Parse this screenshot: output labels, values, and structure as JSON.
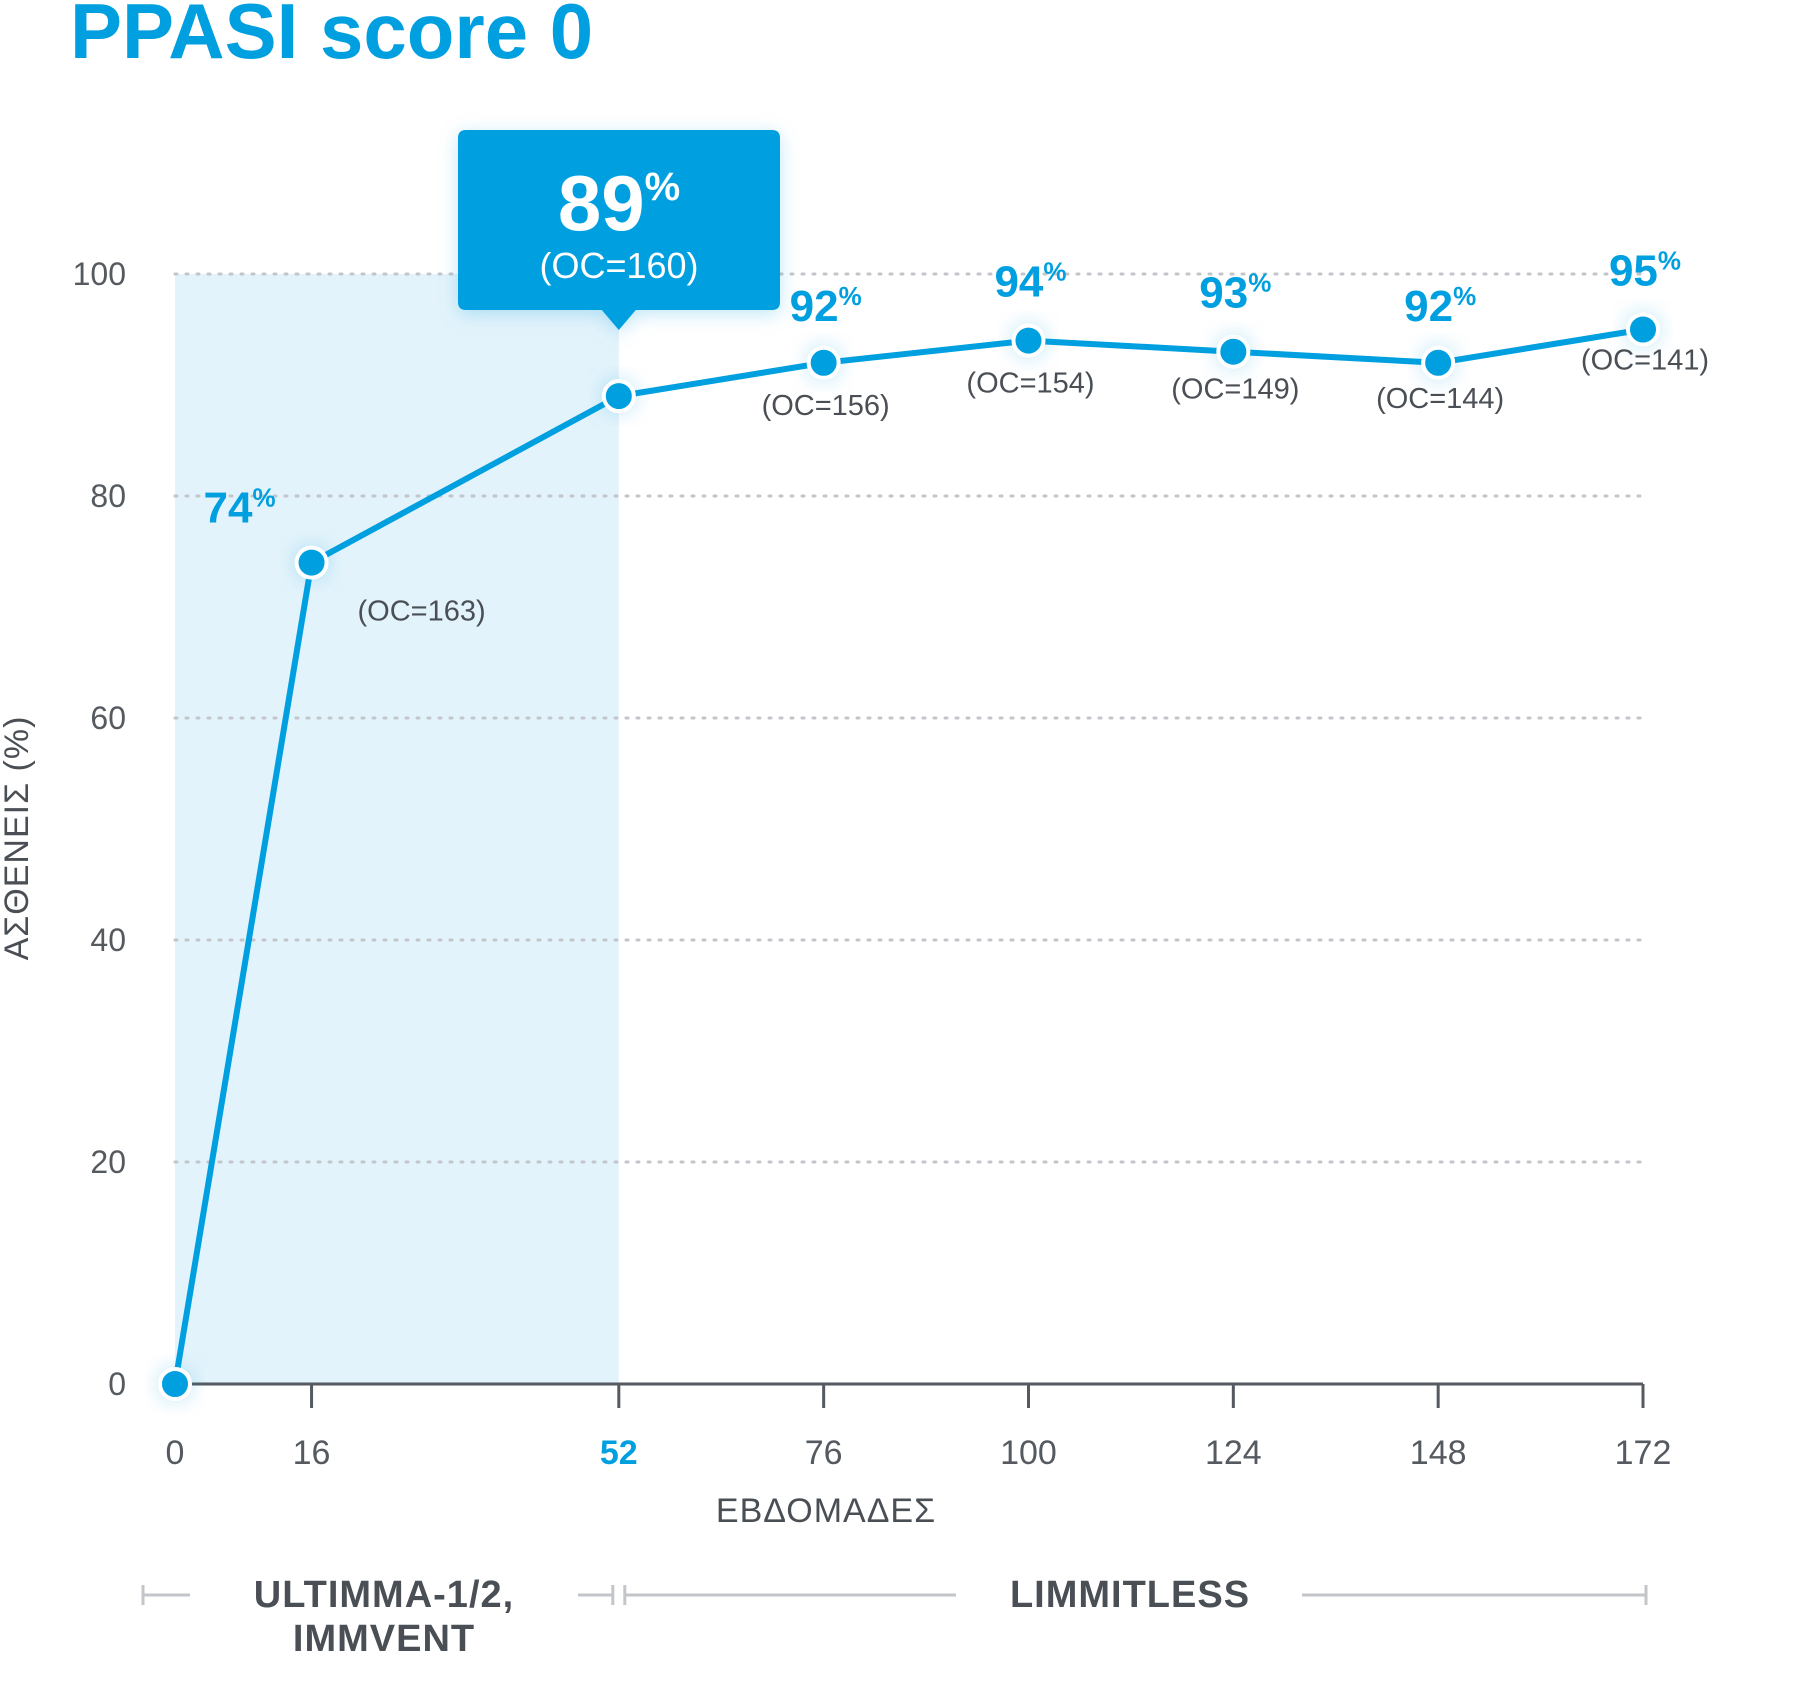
{
  "chart_data": {
    "type": "line",
    "title": "PPASI score 0",
    "xlabel": "ΕΒΔΟΜΑΔΕΣ",
    "ylabel": "ΑΣΘΕΝΕΙΣ (%)",
    "ylim": [
      0,
      100
    ],
    "xlim": [
      0,
      172
    ],
    "y_ticks": [
      "0",
      "20",
      "40",
      "60",
      "80",
      "100"
    ],
    "x_ticks": [
      "0",
      "16",
      "52",
      "76",
      "100",
      "124",
      "148",
      "172"
    ],
    "highlight_tick": "52",
    "grid": true,
    "shaded_region": {
      "from": 0,
      "to": 52
    },
    "series": [
      {
        "name": "PPASI score 0",
        "points": [
          {
            "x": 0,
            "y": 0,
            "label": "",
            "oc": ""
          },
          {
            "x": 16,
            "y": 74,
            "label": "74",
            "oc": "(OC=163)"
          },
          {
            "x": 52,
            "y": 89,
            "label": "89",
            "oc": "(OC=160)"
          },
          {
            "x": 76,
            "y": 92,
            "label": "92",
            "oc": "(OC=156)"
          },
          {
            "x": 100,
            "y": 94,
            "label": "94",
            "oc": "(OC=154)"
          },
          {
            "x": 124,
            "y": 93,
            "label": "93",
            "oc": "(OC=149)"
          },
          {
            "x": 148,
            "y": 92,
            "label": "92",
            "oc": "(OC=144)"
          },
          {
            "x": 172,
            "y": 95,
            "label": "95",
            "oc": "(OC=141)"
          }
        ]
      }
    ],
    "unit_symbol": "%",
    "callout": {
      "value": "89",
      "unit": "%",
      "oc": "(OC=160)"
    },
    "studies": [
      {
        "line1": "ULTIMMA-1/2,",
        "line2": "IMMVENT",
        "from": 0,
        "to": 52
      },
      {
        "line1": "LIMMITLESS",
        "line2": "",
        "from": 52,
        "to": 172
      }
    ],
    "colors": {
      "accent": "#009fdf",
      "shade": "#e3f3fb",
      "grid": "#c2c6ca",
      "axis": "#555a60",
      "text": "#4a4f55"
    }
  }
}
